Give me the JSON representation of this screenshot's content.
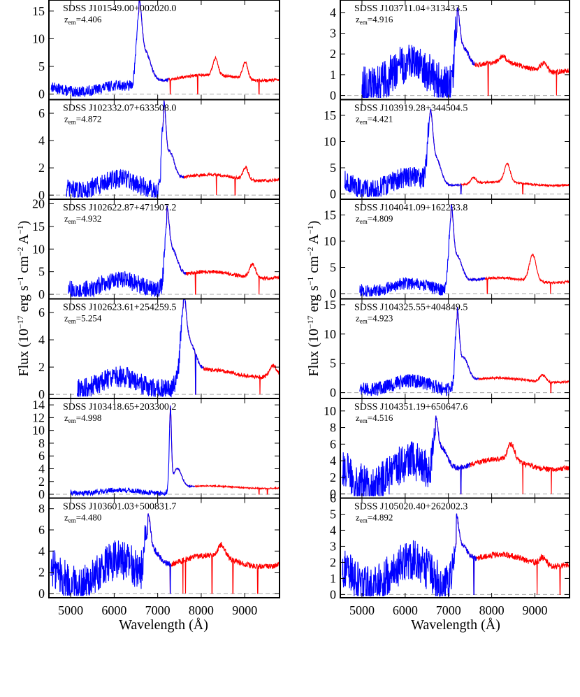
{
  "colors": {
    "lowres": "#0000ff",
    "highres": "#ff0000",
    "zero": "#aaaaaa",
    "frame": "#000000"
  },
  "labels": {
    "xlabel": "Wavelength (Å)",
    "ylabel_prefix": "Flux (10",
    "ylabel_exp": "−17",
    "ylabel_mid1": " erg s",
    "ylabel_exp2": "−1",
    "ylabel_mid2": " cm",
    "ylabel_exp3": "−2",
    "ylabel_mid3": " A",
    "ylabel_exp4": "−1",
    "ylabel_end": ")",
    "z_prefix": "z",
    "z_sub": "em"
  },
  "chart_data": {
    "type": "line",
    "xlim": [
      4500,
      9800
    ],
    "xticks": [
      5000,
      6000,
      7000,
      8000,
      9000
    ],
    "columns": [
      {
        "panels": [
          {
            "name": "SDSS J101549.00+002020.0",
            "z": "=4.406",
            "peak": 16,
            "ylim": [
              -1,
              17
            ],
            "yticks": [
              0,
              5,
              10,
              15
            ],
            "blue_start": 4550,
            "cut": 7250,
            "forest": 1.2,
            "cont": 3.5,
            "features": [
              [
                6570,
                12,
                60
              ],
              [
                6720,
                5,
                120
              ],
              [
                8330,
                3,
                60
              ],
              [
                9010,
                3,
                60
              ]
            ],
            "abs": [
              7290,
              7920,
              9330
            ]
          },
          {
            "name": "SDSS J102332.07+633508.0",
            "z": "=4.872",
            "peak": 6.5,
            "ylim": [
              -0.3,
              7
            ],
            "yticks": [
              0,
              2,
              4,
              6
            ],
            "blue_start": 4900,
            "cut": 7600,
            "forest": 0.9,
            "cont": 1.5,
            "features": [
              [
                7140,
                5,
                45
              ],
              [
                7280,
                2,
                100
              ],
              [
                9020,
                0.9,
                60
              ]
            ],
            "abs": [
              8350,
              8780
            ]
          },
          {
            "name": "SDSS J102622.87+471907.2",
            "z": "=4.932",
            "peak": 19,
            "ylim": [
              -1,
              21
            ],
            "yticks": [
              0,
              5,
              10,
              15,
              20
            ],
            "blue_start": 4950,
            "cut": 7650,
            "forest": 2.5,
            "cont": 5,
            "features": [
              [
                7210,
                12,
                50
              ],
              [
                7330,
                6,
                120
              ],
              [
                9180,
                3,
                70
              ]
            ],
            "abs": [
              7870,
              9330
            ]
          },
          {
            "name": "SDSS J102623.61+254259.5",
            "z": "=5.254",
            "peak": 6.6,
            "ylim": [
              -0.3,
              7
            ],
            "yticks": [
              0,
              2,
              4,
              6
            ],
            "blue_start": 5150,
            "cut": 8050,
            "forest": 1.0,
            "cont": 1.8,
            "features": [
              [
                7590,
                4.5,
                60
              ],
              [
                7720,
                2.2,
                140
              ],
              [
                9650,
                0.8,
                80
              ]
            ],
            "abs": [
              7870,
              9350
            ]
          },
          {
            "name": "SDSS J103418.65+203300.2",
            "z": "=4.998",
            "peak": 13.5,
            "ylim": [
              -0.6,
              15
            ],
            "yticks": [
              0,
              2,
              4,
              6,
              8,
              10,
              12,
              14
            ],
            "blue_start": 5000,
            "cut": 7850,
            "forest": 0.5,
            "cont": 1.3,
            "features": [
              [
                7290,
                12,
                25
              ],
              [
                7450,
                3,
                100
              ]
            ],
            "abs": [
              9330,
              9520
            ]
          },
          {
            "name": "SDSS J103601.03+500831.7",
            "z": "=4.480",
            "peak": 8.4,
            "ylim": [
              -0.4,
              9
            ],
            "yticks": [
              0,
              2,
              4,
              6,
              8
            ],
            "blue_start": 4550,
            "cut": 7300,
            "forest": 2.4,
            "cont": 3.6,
            "features": [
              [
                6770,
                4,
                60
              ],
              [
                6900,
                1.5,
                150
              ],
              [
                8470,
                1.2,
                80
              ]
            ],
            "abs": [
              7290,
              7580,
              7640,
              8250,
              8730,
              9300
            ]
          }
        ]
      },
      {
        "panels": [
          {
            "name": "SDSS J103711.04+313433.5",
            "z": "=4.916",
            "peak": 4.2,
            "ylim": [
              -0.2,
              4.6
            ],
            "yticks": [
              0,
              1,
              2,
              3,
              4
            ],
            "blue_start": 5000,
            "cut": 7600,
            "forest": 1.2,
            "cont": 1.6,
            "features": [
              [
                7200,
                2.5,
                60
              ],
              [
                7350,
                1.0,
                120
              ],
              [
                8250,
                0.3,
                80
              ],
              [
                9200,
                0.4,
                80
              ]
            ],
            "abs": [
              7920,
              9500
            ]
          },
          {
            "name": "SDSS J103919.28+344504.5",
            "z": "=4.421",
            "peak": 15.5,
            "ylim": [
              -1,
              18
            ],
            "yticks": [
              0,
              5,
              10,
              15
            ],
            "blue_start": 4600,
            "cut": 7300,
            "forest": 2.5,
            "cont": 2.3,
            "features": [
              [
                6580,
                12,
                55
              ],
              [
                6720,
                5,
                110
              ],
              [
                7580,
                1.2,
                60
              ],
              [
                8360,
                3.5,
                70
              ]
            ],
            "abs": [
              7290,
              8720
            ]
          },
          {
            "name": "SDSS J104041.09+162233.8",
            "z": "=4.809",
            "peak": 16.5,
            "ylim": [
              -1,
              18
            ],
            "yticks": [
              0,
              5,
              10,
              15
            ],
            "blue_start": 4950,
            "cut": 7850,
            "forest": 1.5,
            "cont": 3,
            "features": [
              [
                7060,
                12,
                50
              ],
              [
                7190,
                5,
                120
              ],
              [
                8950,
                5,
                80
              ]
            ],
            "abs": [
              7900,
              9360
            ]
          },
          {
            "name": "SDSS J104325.55+404849.5",
            "z": "=4.923",
            "peak": 14.5,
            "ylim": [
              -1,
              16
            ],
            "yticks": [
              0,
              5,
              10,
              15
            ],
            "blue_start": 4950,
            "cut": 7700,
            "forest": 1.5,
            "cont": 2.5,
            "features": [
              [
                7200,
                11,
                45
              ],
              [
                7350,
                4,
                110
              ],
              [
                9180,
                1.2,
                70
              ]
            ],
            "abs": [
              9370
            ]
          },
          {
            "name": "SDSS J104351.19+650647.6",
            "z": "=4.516",
            "peak": 10.5,
            "ylim": [
              -0.5,
              11.5
            ],
            "yticks": [
              0,
              2,
              4,
              6,
              8,
              10
            ],
            "blue_start": 4550,
            "cut": 7500,
            "forest": 3.0,
            "cont": 4.2,
            "features": [
              [
                6700,
                5,
                55
              ],
              [
                6850,
                2.5,
                130
              ],
              [
                8450,
                2,
                80
              ]
            ],
            "abs": [
              7290,
              8720,
              9380
            ]
          },
          {
            "name": "SDSS J105020.40+262002.3",
            "z": "=4.892",
            "peak": 5.3,
            "ylim": [
              -0.2,
              6
            ],
            "yticks": [
              0,
              1,
              2,
              3,
              4,
              5,
              6
            ],
            "blue_start": 4550,
            "cut": 7650,
            "forest": 1.6,
            "cont": 2.5,
            "features": [
              [
                7180,
                2.5,
                60
              ],
              [
                7320,
                1.0,
                130
              ],
              [
                9180,
                0.5,
                80
              ]
            ],
            "abs": [
              7590,
              9050,
              9580
            ]
          }
        ]
      }
    ]
  }
}
